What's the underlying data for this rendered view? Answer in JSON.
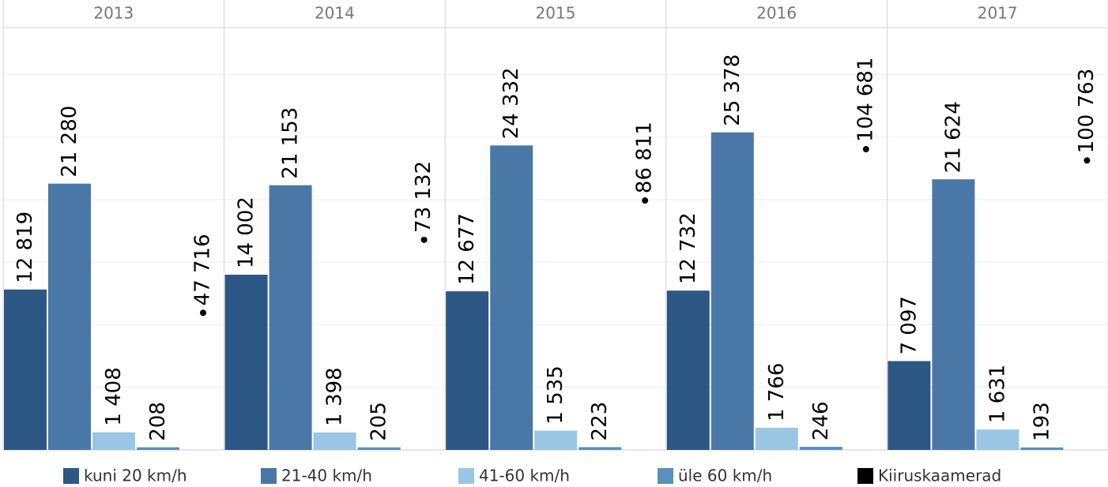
{
  "chart_data": {
    "type": "bar",
    "categories": [
      "2013",
      "2014",
      "2015",
      "2016",
      "2017"
    ],
    "series": [
      {
        "name": "kuni 20 km/h",
        "color": "#2c5784",
        "values": [
          12819,
          14002,
          12677,
          12732,
          7097
        ],
        "value_labels": [
          "12 819",
          "14 002",
          "12 677",
          "12 732",
          "7 097"
        ]
      },
      {
        "name": "21-40 km/h",
        "color": "#4a78a6",
        "values": [
          21280,
          21153,
          24332,
          25378,
          21624
        ],
        "value_labels": [
          "21 280",
          "21 153",
          "24 332",
          "25 378",
          "21 624"
        ]
      },
      {
        "name": "41-60 km/h",
        "color": "#9ac6e4",
        "values": [
          1408,
          1398,
          1535,
          1766,
          1631
        ],
        "value_labels": [
          "1 408",
          "1 398",
          "1 535",
          "1 766",
          "1 631"
        ]
      },
      {
        "name": "üle 60 km/h",
        "color": "#5b8fbd",
        "values": [
          208,
          205,
          223,
          246,
          193
        ]
      },
      {
        "name": "Kiiruskaamerad",
        "color": "#000000",
        "axis": "y2",
        "values": [
          47716,
          73132,
          86811,
          104681,
          100763
        ],
        "value_labels": [
          "47 716",
          "73 132",
          "86 811",
          "104 681",
          "100 763"
        ]
      }
    ],
    "ylim": [
      0,
      33750
    ],
    "yticks": [
      0,
      5000,
      10000,
      15000,
      20000,
      25000,
      30000
    ],
    "y2lim": [
      0,
      147000
    ],
    "grid": true
  }
}
